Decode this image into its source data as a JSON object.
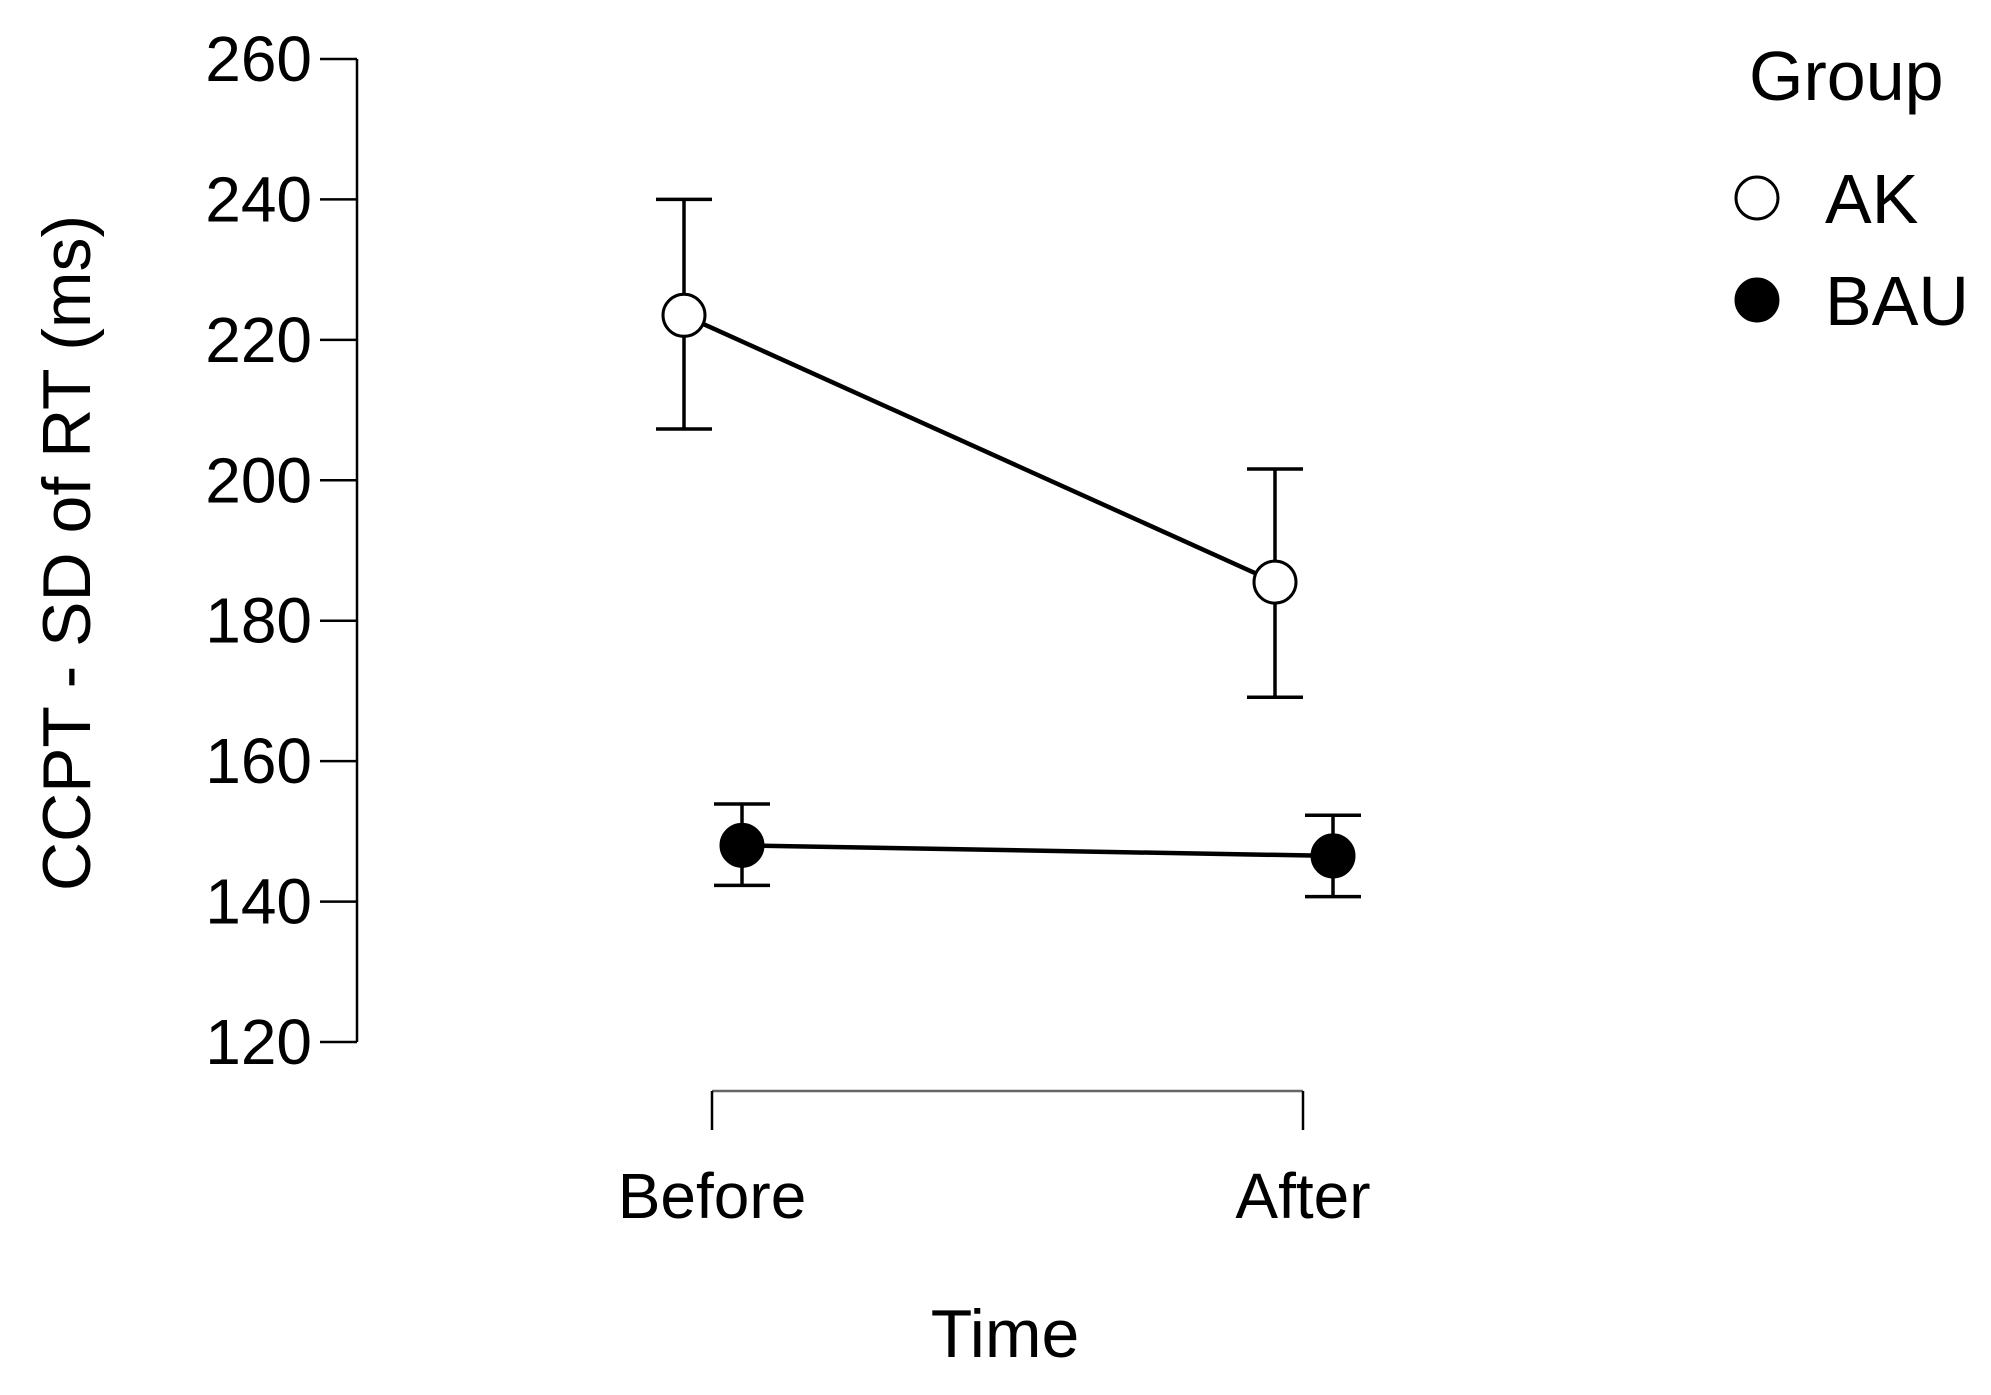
{
  "chart_data": {
    "type": "line",
    "title": "",
    "xlabel": "Time",
    "ylabel": "CCPT - SD of RT (ms)",
    "categories": [
      "Before",
      "After"
    ],
    "ylim": [
      120,
      260
    ],
    "yticks": [
      120,
      140,
      160,
      180,
      200,
      220,
      240,
      260
    ],
    "legend": {
      "title": "Group",
      "placement": "top-right"
    },
    "grid": false,
    "series": [
      {
        "name": "AK",
        "marker": "open-circle",
        "color": "#000000",
        "values": [
          223.5,
          185.5
        ],
        "error_low": [
          207.3,
          169.1
        ],
        "error_high": [
          240.0,
          201.6
        ]
      },
      {
        "name": "BAU",
        "marker": "filled-circle",
        "color": "#000000",
        "values": [
          148.0,
          146.5
        ],
        "error_low": [
          142.3,
          140.7
        ],
        "error_high": [
          153.9,
          152.3
        ]
      }
    ]
  }
}
